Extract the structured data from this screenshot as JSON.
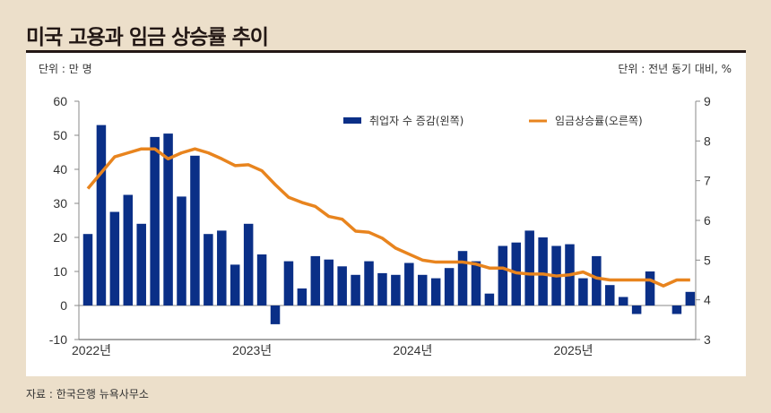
{
  "title": "미국 고용과 임금 상승률 추이",
  "unit_left": "단위 : 만 명",
  "unit_right": "단위 : 전년 동기 대비, %",
  "source": "자료 : 한국은행 뉴욕사무소",
  "colors": {
    "bar": "#0a2f87",
    "line": "#e8841e",
    "background": "#ecdfca",
    "panel": "#ffffff",
    "title": "#231815"
  },
  "chart_data": {
    "type": "bar+line",
    "title": "미국 고용과 임금 상승률 추이",
    "x_labels": [
      "2022년",
      "2023년",
      "2024년",
      "2025년"
    ],
    "x_label_month_index": [
      0,
      12,
      24,
      36
    ],
    "months_count": 46,
    "left_axis": {
      "label": "단위 : 만 명",
      "ylim": [
        -10,
        60
      ],
      "ticks": [
        60,
        50,
        40,
        30,
        20,
        10,
        0,
        -10
      ]
    },
    "right_axis": {
      "label": "단위 : 전년 동기 대비, %",
      "ylim": [
        3,
        9
      ],
      "ticks": [
        9,
        8,
        7,
        6,
        5,
        4,
        3
      ]
    },
    "legend": {
      "placement": "top",
      "entries": [
        "취업자 수 증감(왼쪽)",
        "임금상승률(오른쪽)"
      ]
    },
    "series": [
      {
        "name": "취업자 수 증감(왼쪽)",
        "type": "bar",
        "axis": "left",
        "values": [
          21,
          53,
          27.5,
          32.5,
          24,
          49.5,
          50.5,
          32,
          44,
          21,
          22,
          12,
          24,
          15,
          -5.5,
          13,
          5,
          14.5,
          13.5,
          11.5,
          9,
          13,
          9.5,
          9,
          12.5,
          9,
          8,
          11,
          16,
          13,
          3.5,
          17.5,
          18.5,
          22,
          20,
          17.5,
          18,
          8,
          14.5,
          6,
          2.5,
          -2.5,
          10,
          null,
          -2.5,
          4
        ]
      },
      {
        "name": "임금상승률(오른쪽)",
        "type": "line",
        "axis": "right",
        "values": [
          6.8,
          7.2,
          7.6,
          7.7,
          7.8,
          7.8,
          7.55,
          7.7,
          7.8,
          7.7,
          7.55,
          7.38,
          7.4,
          7.25,
          6.9,
          6.58,
          6.45,
          6.35,
          6.1,
          6.03,
          5.73,
          5.7,
          5.55,
          5.3,
          5.15,
          5.0,
          4.95,
          4.95,
          4.95,
          4.9,
          4.8,
          4.8,
          4.68,
          4.65,
          4.65,
          4.6,
          4.63,
          4.7,
          4.55,
          4.5,
          4.5,
          4.5,
          4.5,
          4.35,
          4.5,
          4.5
        ]
      }
    ]
  }
}
